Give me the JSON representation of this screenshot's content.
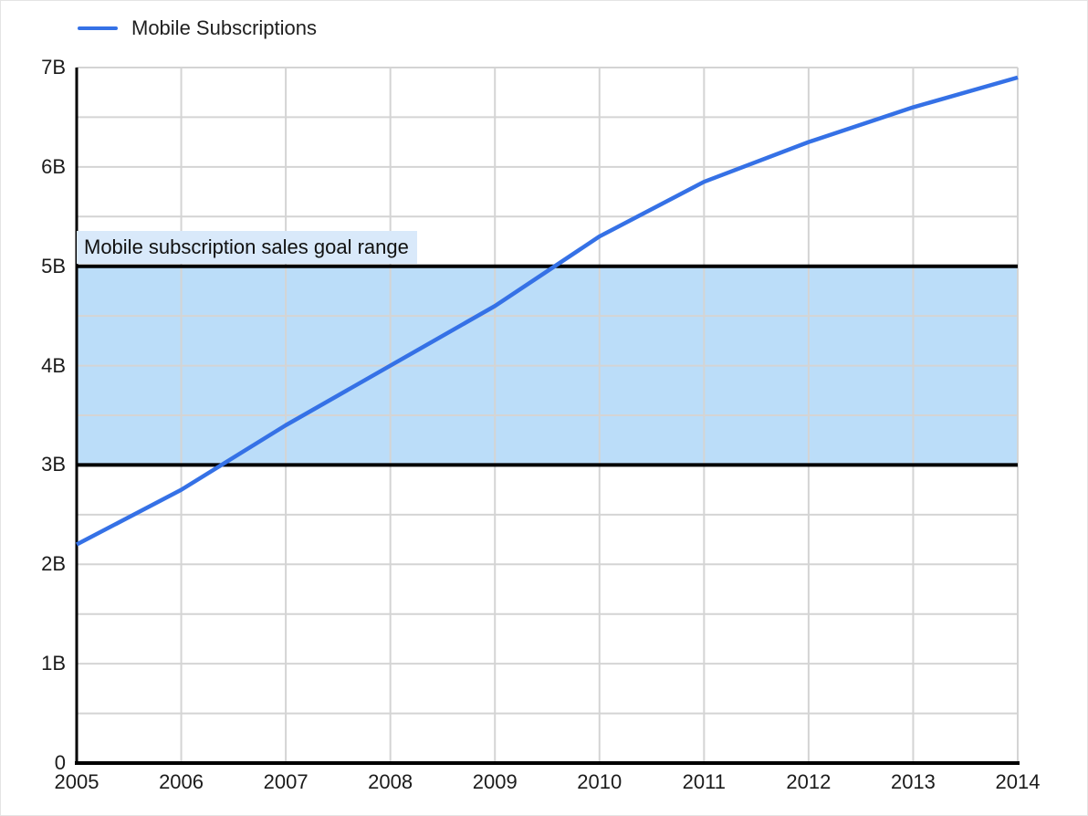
{
  "legend": {
    "items": [
      {
        "label": "Mobile Subscriptions"
      }
    ]
  },
  "annotation": {
    "label": "Mobile subscription sales goal range"
  },
  "colors": {
    "series": "#3571e6",
    "band_fill": "#bbddf9",
    "band_border": "#000000",
    "annotation_bg": "#d9e9fa",
    "gridline": "#d4d4d4",
    "axis": "#000000",
    "text": "#1b1b1b"
  },
  "chart_data": {
    "type": "line",
    "title": "",
    "xlabel": "",
    "ylabel": "",
    "x": [
      2005,
      2006,
      2007,
      2008,
      2009,
      2010,
      2011,
      2012,
      2013,
      2014
    ],
    "x_tick_labels": [
      "2005",
      "2006",
      "2007",
      "2008",
      "2009",
      "2010",
      "2011",
      "2012",
      "2013",
      "2014"
    ],
    "series": [
      {
        "name": "Mobile Subscriptions",
        "color": "#3571e6",
        "values": [
          2.2,
          2.75,
          3.4,
          4.0,
          4.6,
          5.3,
          5.85,
          6.25,
          6.6,
          6.9
        ]
      }
    ],
    "xlim": [
      2005,
      2014
    ],
    "ylim": [
      0,
      7
    ],
    "y_tick_values": [
      0,
      1,
      2,
      3,
      4,
      5,
      6,
      7
    ],
    "y_tick_labels": [
      "0",
      "1B",
      "2B",
      "3B",
      "4B",
      "5B",
      "6B",
      "7B"
    ],
    "y_gridline_step": 0.5,
    "grid": true,
    "legend_position": "top-left",
    "band": {
      "from": 3,
      "to": 5,
      "label": "Mobile subscription sales goal range"
    }
  }
}
